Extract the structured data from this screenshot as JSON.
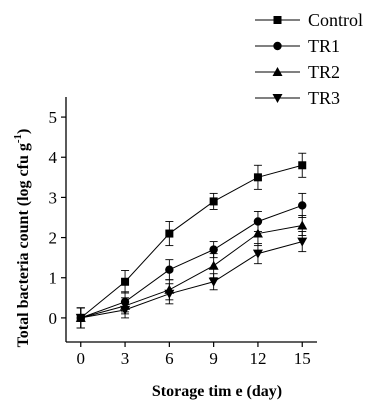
{
  "chart_data": {
    "type": "line",
    "title": "",
    "xlabel": "Storage tim e (day)",
    "ylabel_main": "Total bacteria count (log cfu g",
    "ylabel_sup": "-1",
    "ylabel_close": ")",
    "x": [
      0,
      3,
      6,
      9,
      12,
      15
    ],
    "xlim": [
      -1,
      16
    ],
    "ylim": [
      -0.6,
      5.5
    ],
    "xticks": [
      0,
      3,
      6,
      9,
      12,
      15
    ],
    "yticks": [
      0,
      1,
      2,
      3,
      4,
      5
    ],
    "grid": false,
    "legend_position": "top-right",
    "series": [
      {
        "name": "Control",
        "marker": "square",
        "values": [
          0,
          0.9,
          2.1,
          2.9,
          3.5,
          3.8
        ],
        "errors": [
          0.25,
          0.28,
          0.3,
          0.2,
          0.3,
          0.3
        ]
      },
      {
        "name": "TR1",
        "marker": "circle",
        "values": [
          0,
          0.4,
          1.2,
          1.7,
          2.4,
          2.8
        ],
        "errors": [
          0.25,
          0.25,
          0.25,
          0.2,
          0.25,
          0.3
        ]
      },
      {
        "name": "TR2",
        "marker": "triangle-up",
        "values": [
          0,
          0.3,
          0.7,
          1.3,
          2.1,
          2.3
        ],
        "errors": [
          0.25,
          0.2,
          0.25,
          0.3,
          0.3,
          0.25
        ]
      },
      {
        "name": "TR3",
        "marker": "triangle-down",
        "values": [
          0,
          0.2,
          0.6,
          0.9,
          1.6,
          1.9
        ],
        "errors": [
          0.25,
          0.2,
          0.25,
          0.2,
          0.25,
          0.25
        ]
      }
    ]
  }
}
